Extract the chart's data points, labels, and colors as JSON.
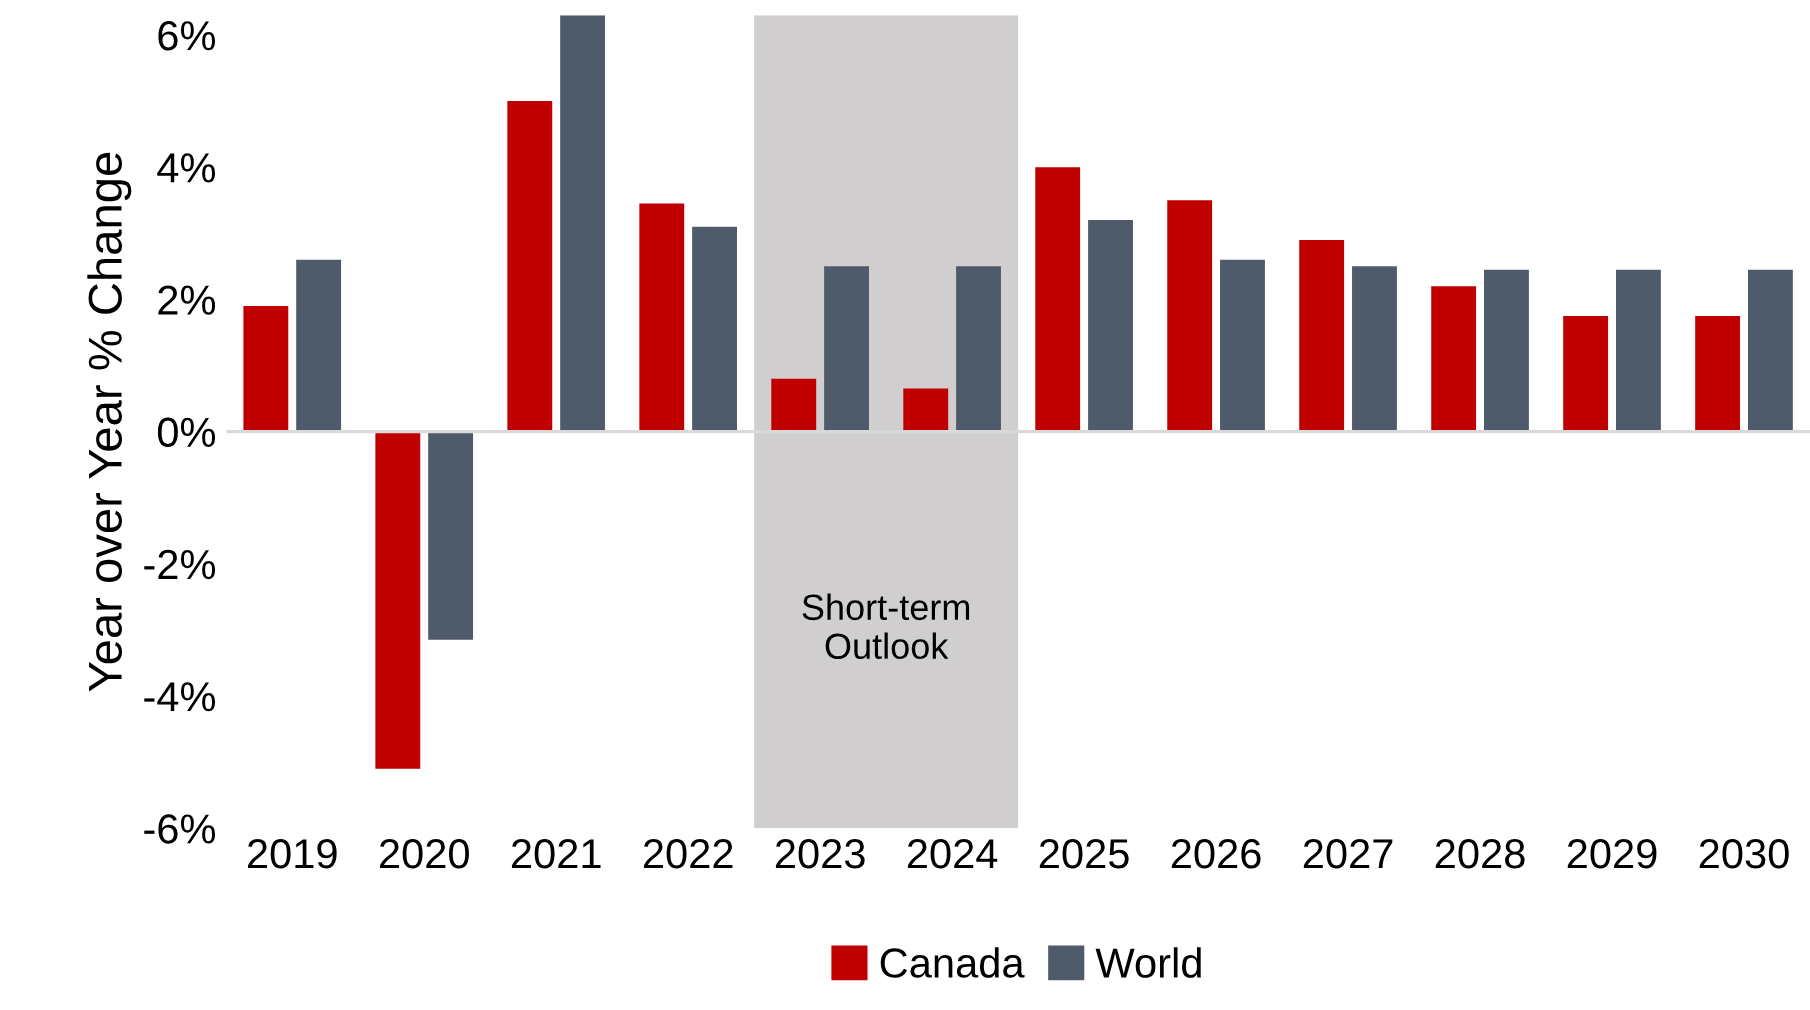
{
  "chart_data": {
    "type": "bar",
    "ylabel": "Year over Year % Change",
    "categories": [
      "2019",
      "2020",
      "2021",
      "2022",
      "2023",
      "2024",
      "2025",
      "2026",
      "2027",
      "2028",
      "2029",
      "2030"
    ],
    "series": [
      {
        "name": "Canada",
        "color": "#c00000",
        "values": [
          1.9,
          -5.1,
          5.0,
          3.45,
          0.8,
          0.65,
          4.0,
          3.5,
          2.9,
          2.2,
          1.75,
          1.75
        ]
      },
      {
        "name": "World",
        "color": "#4f5b6b",
        "values": [
          2.6,
          -3.15,
          6.3,
          3.1,
          2.5,
          2.5,
          3.2,
          2.6,
          2.5,
          2.45,
          2.45,
          2.45
        ]
      }
    ],
    "ylim": [
      -6,
      6.3
    ],
    "yticks": [
      {
        "value": -6,
        "label": "-6%"
      },
      {
        "value": -4,
        "label": "-4%"
      },
      {
        "value": -2,
        "label": "-2%"
      },
      {
        "value": 0,
        "label": "0%"
      },
      {
        "value": 2,
        "label": "2%"
      },
      {
        "value": 4,
        "label": "4%"
      },
      {
        "value": 6,
        "label": "6%"
      }
    ],
    "bands": [
      {
        "axis": "x",
        "from": "2023",
        "to": "2024",
        "label": "Short-term Outlook",
        "color": "#d0cece"
      }
    ],
    "ref_lines": [
      {
        "axis": "y",
        "value": 0,
        "color": "#d9d9d9"
      }
    ],
    "legend": "bottom",
    "grid": false
  }
}
